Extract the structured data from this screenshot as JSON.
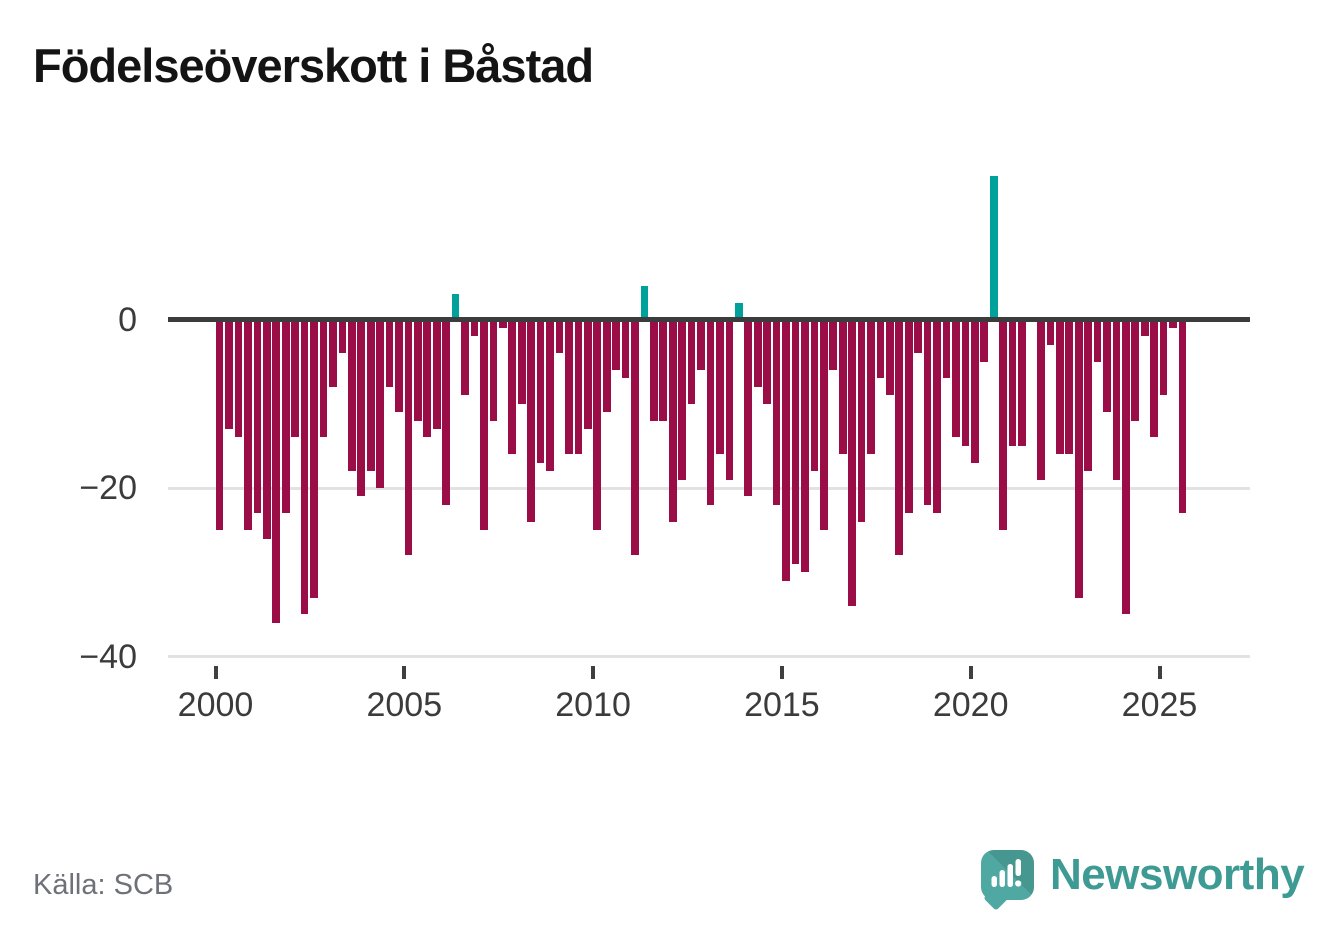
{
  "header": {
    "title": "Födelseöverskott i Båstad"
  },
  "footer": {
    "source": "Källa: SCB",
    "brand_name": "Newsworthy"
  },
  "chart_data": {
    "type": "bar",
    "title": "Födelseöverskott i Båstad",
    "frequency": "quarterly",
    "start_period": "2000 Q1",
    "end_period": "2025 Q3",
    "grid": "horizontal",
    "legend": "none",
    "ylim": [
      -42,
      18
    ],
    "y_axis": {
      "ticks": [
        {
          "label": "0",
          "value": 0
        },
        {
          "label": "−20",
          "value": -20
        },
        {
          "label": "−40",
          "value": -40
        }
      ]
    },
    "x_axis": {
      "ticks": [
        {
          "label": "2000",
          "year": 2000
        },
        {
          "label": "2005",
          "year": 2005
        },
        {
          "label": "2010",
          "year": 2010
        },
        {
          "label": "2015",
          "year": 2015
        },
        {
          "label": "2020",
          "year": 2020
        },
        {
          "label": "2025",
          "year": 2025
        }
      ]
    },
    "colors": {
      "negative": "#9b0d46",
      "positive": "#00a19a",
      "zero_line": "#3c3c3c",
      "gridline": "#e2e2e2"
    },
    "values": [
      -25,
      -13,
      -14,
      -25,
      -23,
      -26,
      -36,
      -23,
      -14,
      -35,
      -33,
      -14,
      -8,
      -4,
      -18,
      -21,
      -18,
      -20,
      -8,
      -11,
      -28,
      -12,
      -14,
      -13,
      -22,
      3,
      -9,
      -2,
      -25,
      -12,
      -1,
      -16,
      -10,
      -24,
      -17,
      -18,
      -4,
      -16,
      -16,
      -13,
      -25,
      -11,
      -6,
      -7,
      -28,
      4,
      -12,
      -12,
      -24,
      -19,
      -10,
      -6,
      -22,
      -16,
      -19,
      2,
      -21,
      -8,
      -10,
      -22,
      -31,
      -29,
      -30,
      -18,
      -25,
      -6,
      -16,
      -34,
      -24,
      -16,
      -7,
      -9,
      -28,
      -23,
      -4,
      -22,
      -23,
      -7,
      -14,
      -15,
      -17,
      -5,
      17,
      -25,
      -15,
      -15,
      0,
      -19,
      -3,
      -16,
      -16,
      -33,
      -18,
      -5,
      -11,
      -19,
      -35,
      -12,
      -2,
      -14,
      -9,
      -1,
      -23
    ]
  }
}
